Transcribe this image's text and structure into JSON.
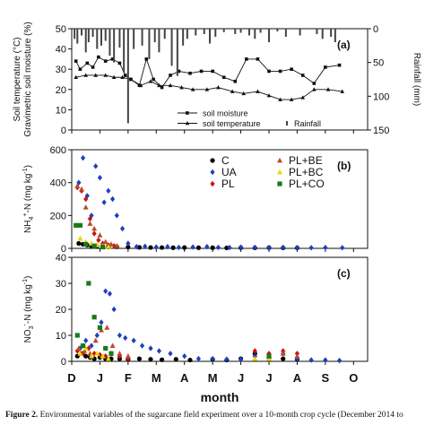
{
  "caption": {
    "label": "Figure 2.",
    "text": "Environmental variables of the sugarcane field experiment over a 10-month crop cycle (December 2014 to"
  },
  "x_axis": {
    "label": "month",
    "ticks": [
      "D",
      "J",
      "F",
      "M",
      "A",
      "M",
      "J",
      "J",
      "A",
      "S",
      "O"
    ]
  },
  "chart_data": [
    {
      "type": "line",
      "panel": "(a)",
      "ylabel": "Soil temperature (°C)\nGravimetric soil moisture (%)",
      "ylabel_lines": [
        "Soil temperature (",
        "C)",
        "Gravimetric soil moisture (%)"
      ],
      "ylim": [
        0,
        50
      ],
      "yticks": [
        0,
        10,
        20,
        30,
        40,
        50
      ],
      "y2label": "Rainfall (mm)",
      "y2lim": [
        150,
        0
      ],
      "y2ticks": [
        0,
        50,
        100,
        150
      ],
      "xlim": [
        0,
        10.5
      ],
      "legend": [
        "soil moisture",
        "soil temperature",
        "Rainfall"
      ],
      "legend_position": "bottom-center",
      "series": [
        {
          "name": "soil moisture",
          "marker": "square",
          "x": [
            0.15,
            0.3,
            0.55,
            0.75,
            0.95,
            1.2,
            1.45,
            1.7,
            1.9,
            2.1,
            2.4,
            2.65,
            2.9,
            3.2,
            3.5,
            3.8,
            4.2,
            4.6,
            5.0,
            5.4,
            5.8,
            6.2,
            6.6,
            7.0,
            7.4,
            7.8,
            8.2,
            8.6,
            9.0,
            9.5
          ],
          "values": [
            34,
            30,
            33,
            31,
            36,
            34,
            35,
            33,
            27,
            25,
            22,
            35,
            25,
            21,
            27,
            29,
            28,
            29,
            29,
            26,
            24,
            35,
            35,
            29,
            29,
            30,
            27,
            23,
            31,
            32
          ]
        },
        {
          "name": "soil temperature",
          "marker": "triangle",
          "x": [
            0.15,
            0.5,
            0.85,
            1.2,
            1.5,
            1.8,
            2.1,
            2.45,
            2.8,
            3.1,
            3.5,
            3.9,
            4.3,
            4.8,
            5.2,
            5.7,
            6.1,
            6.6,
            7.0,
            7.4,
            7.8,
            8.2,
            8.6,
            9.1,
            9.6
          ],
          "values": [
            26,
            27,
            27,
            27,
            26,
            26,
            25,
            22,
            24,
            22,
            22,
            21,
            20,
            20,
            21,
            19,
            18,
            19,
            17,
            15,
            15,
            16,
            20,
            20,
            19
          ]
        },
        {
          "name": "Rainfall",
          "marker": "bar",
          "x": [
            0.1,
            0.2,
            0.35,
            0.5,
            0.6,
            0.75,
            0.9,
            1.05,
            1.2,
            1.35,
            1.5,
            1.7,
            1.85,
            2.0,
            2.2,
            2.5,
            2.75,
            2.95,
            3.1,
            3.3,
            3.55,
            3.75,
            3.95,
            4.1,
            4.4,
            4.7,
            4.9,
            5.1,
            5.4,
            5.8,
            6.0,
            6.3,
            6.5,
            6.7,
            7.0,
            7.3,
            7.6,
            8.1,
            8.7,
            8.9,
            9.2,
            9.35
          ],
          "values": [
            15,
            22,
            10,
            35,
            20,
            12,
            30,
            25,
            18,
            40,
            50,
            28,
            65,
            140,
            30,
            25,
            45,
            20,
            35,
            15,
            55,
            70,
            25,
            15,
            10,
            8,
            22,
            12,
            5,
            8,
            6,
            10,
            15,
            6,
            20,
            4,
            12,
            10,
            8,
            15,
            12,
            20
          ]
        }
      ]
    },
    {
      "type": "scatter",
      "panel": "(b)",
      "ylabel": "NH4+-N (mg kg-1)",
      "ylim": [
        0,
        600
      ],
      "yticks": [
        0,
        200,
        400,
        600
      ],
      "xlim": [
        0,
        10.5
      ],
      "legend_position": "top-right",
      "series": [
        {
          "name": "C",
          "marker": "circle",
          "color": "#000000",
          "x": [
            0.25,
            0.4,
            0.55,
            0.7,
            0.9,
            1.1,
            1.3,
            1.6,
            2.0,
            2.4,
            2.8,
            3.2,
            3.6,
            4.0,
            4.5,
            5.0,
            5.5,
            6.0,
            6.5,
            7.0,
            7.5,
            8.0
          ],
          "values": [
            30,
            25,
            20,
            15,
            12,
            10,
            8,
            10,
            8,
            6,
            5,
            5,
            4,
            5,
            4,
            4,
            3,
            4,
            3,
            4,
            3,
            3
          ]
        },
        {
          "name": "UA",
          "marker": "diamond",
          "color": "#1f3fbf",
          "x": [
            0.25,
            0.4,
            0.55,
            0.7,
            0.85,
            1.0,
            1.15,
            1.3,
            1.45,
            1.6,
            1.8,
            2.0,
            2.3,
            2.6,
            3.0,
            3.4,
            3.8,
            4.3,
            4.8,
            5.2,
            5.6,
            6.0,
            6.5,
            7.0,
            7.5,
            8.0,
            8.5,
            9.0,
            9.6
          ],
          "values": [
            400,
            550,
            320,
            200,
            500,
            430,
            280,
            350,
            300,
            200,
            120,
            30,
            10,
            12,
            8,
            10,
            6,
            8,
            10,
            6,
            5,
            7,
            6,
            5,
            6,
            5,
            4,
            5,
            4
          ]
        },
        {
          "name": "PL",
          "marker": "diamond",
          "color": "#cc1111",
          "x": [
            0.2,
            0.35,
            0.5,
            0.65,
            0.8,
            0.95,
            1.1,
            1.3,
            1.5
          ],
          "values": [
            370,
            350,
            300,
            180,
            90,
            50,
            30,
            20,
            15
          ]
        },
        {
          "name": "PL+BE",
          "marker": "triangle",
          "color": "#b5502a",
          "x": [
            0.2,
            0.35,
            0.5,
            0.65,
            0.8,
            1.0,
            1.2,
            1.4,
            1.6
          ],
          "values": [
            380,
            360,
            250,
            150,
            120,
            80,
            40,
            25,
            15
          ]
        },
        {
          "name": "PL+BC",
          "marker": "triangle",
          "color": "#e6d800",
          "x": [
            0.3,
            0.5,
            0.7,
            0.9,
            1.1,
            1.3
          ],
          "values": [
            60,
            40,
            30,
            20,
            15,
            10
          ]
        },
        {
          "name": "PL+CO",
          "marker": "square",
          "color": "#1a7a1a",
          "x": [
            0.15,
            0.3,
            0.5,
            0.8,
            1.1
          ],
          "values": [
            140,
            140,
            25,
            15,
            8
          ]
        }
      ]
    },
    {
      "type": "scatter",
      "panel": "(c)",
      "ylabel": "NO3--N (mg kg-1)",
      "ylim": [
        0,
        40
      ],
      "yticks": [
        0,
        10,
        20,
        30,
        40
      ],
      "xlim": [
        0,
        10.5
      ],
      "series": [
        {
          "name": "C",
          "marker": "circle",
          "color": "#000000",
          "x": [
            0.2,
            0.35,
            0.5,
            0.65,
            0.8,
            1.0,
            1.2,
            1.4,
            1.7,
            2.0,
            2.4,
            2.8,
            3.2,
            3.7,
            4.2,
            5.0,
            5.5,
            6.0,
            6.5,
            7.0,
            7.5,
            8.0
          ],
          "values": [
            2,
            3,
            2,
            1.5,
            1,
            1.5,
            1,
            1,
            1,
            0.8,
            1,
            0.8,
            0.6,
            0.8,
            0.5,
            0.8,
            0.5,
            1,
            3,
            1.5,
            1,
            0.8
          ]
        },
        {
          "name": "UA",
          "marker": "diamond",
          "color": "#1f3fbf",
          "x": [
            0.3,
            0.5,
            0.7,
            0.9,
            1.05,
            1.2,
            1.35,
            1.5,
            1.7,
            1.9,
            2.2,
            2.5,
            2.8,
            3.1,
            3.5,
            4.0,
            4.5,
            5.0,
            5.5,
            6.0,
            6.5,
            7.0,
            7.5,
            8.0,
            8.5,
            9.0,
            9.5
          ],
          "values": [
            5,
            8,
            6,
            10,
            15,
            27,
            26,
            20,
            10,
            9,
            8,
            6,
            5,
            4,
            3,
            2,
            1,
            1,
            0.8,
            0.8,
            2,
            1,
            3,
            1,
            0.5,
            0.5,
            0.3
          ]
        },
        {
          "name": "PL",
          "marker": "diamond",
          "color": "#cc1111",
          "x": [
            0.2,
            0.4,
            0.6,
            0.8,
            1.0,
            1.2,
            1.4,
            1.7,
            2.0,
            6.5,
            7.0,
            7.5,
            8.0
          ],
          "values": [
            4,
            3,
            5,
            3,
            2.5,
            2,
            3,
            2,
            1,
            4,
            3,
            4,
            3
          ]
        },
        {
          "name": "PL+BE",
          "marker": "triangle",
          "color": "#b5502a",
          "x": [
            0.25,
            0.45,
            0.65,
            0.85,
            1.05,
            1.25,
            1.45,
            1.7,
            2.0,
            7.0,
            7.5,
            8.0
          ],
          "values": [
            5,
            4,
            3,
            8,
            12,
            13,
            6,
            3,
            2,
            2,
            3,
            2
          ]
        },
        {
          "name": "PL+BC",
          "marker": "triangle",
          "color": "#e6d800",
          "x": [
            0.3,
            0.5,
            0.7,
            0.9,
            1.1,
            1.3,
            6.5,
            7.0
          ],
          "values": [
            3,
            5,
            2,
            3,
            2,
            1,
            1,
            1
          ]
        },
        {
          "name": "PL+CO",
          "marker": "square",
          "color": "#1a7a1a",
          "x": [
            0.2,
            0.4,
            0.6,
            0.8,
            1.0,
            1.2,
            1.4,
            7.0
          ],
          "values": [
            10,
            6,
            30,
            17,
            13,
            5,
            3,
            2
          ]
        }
      ]
    }
  ]
}
